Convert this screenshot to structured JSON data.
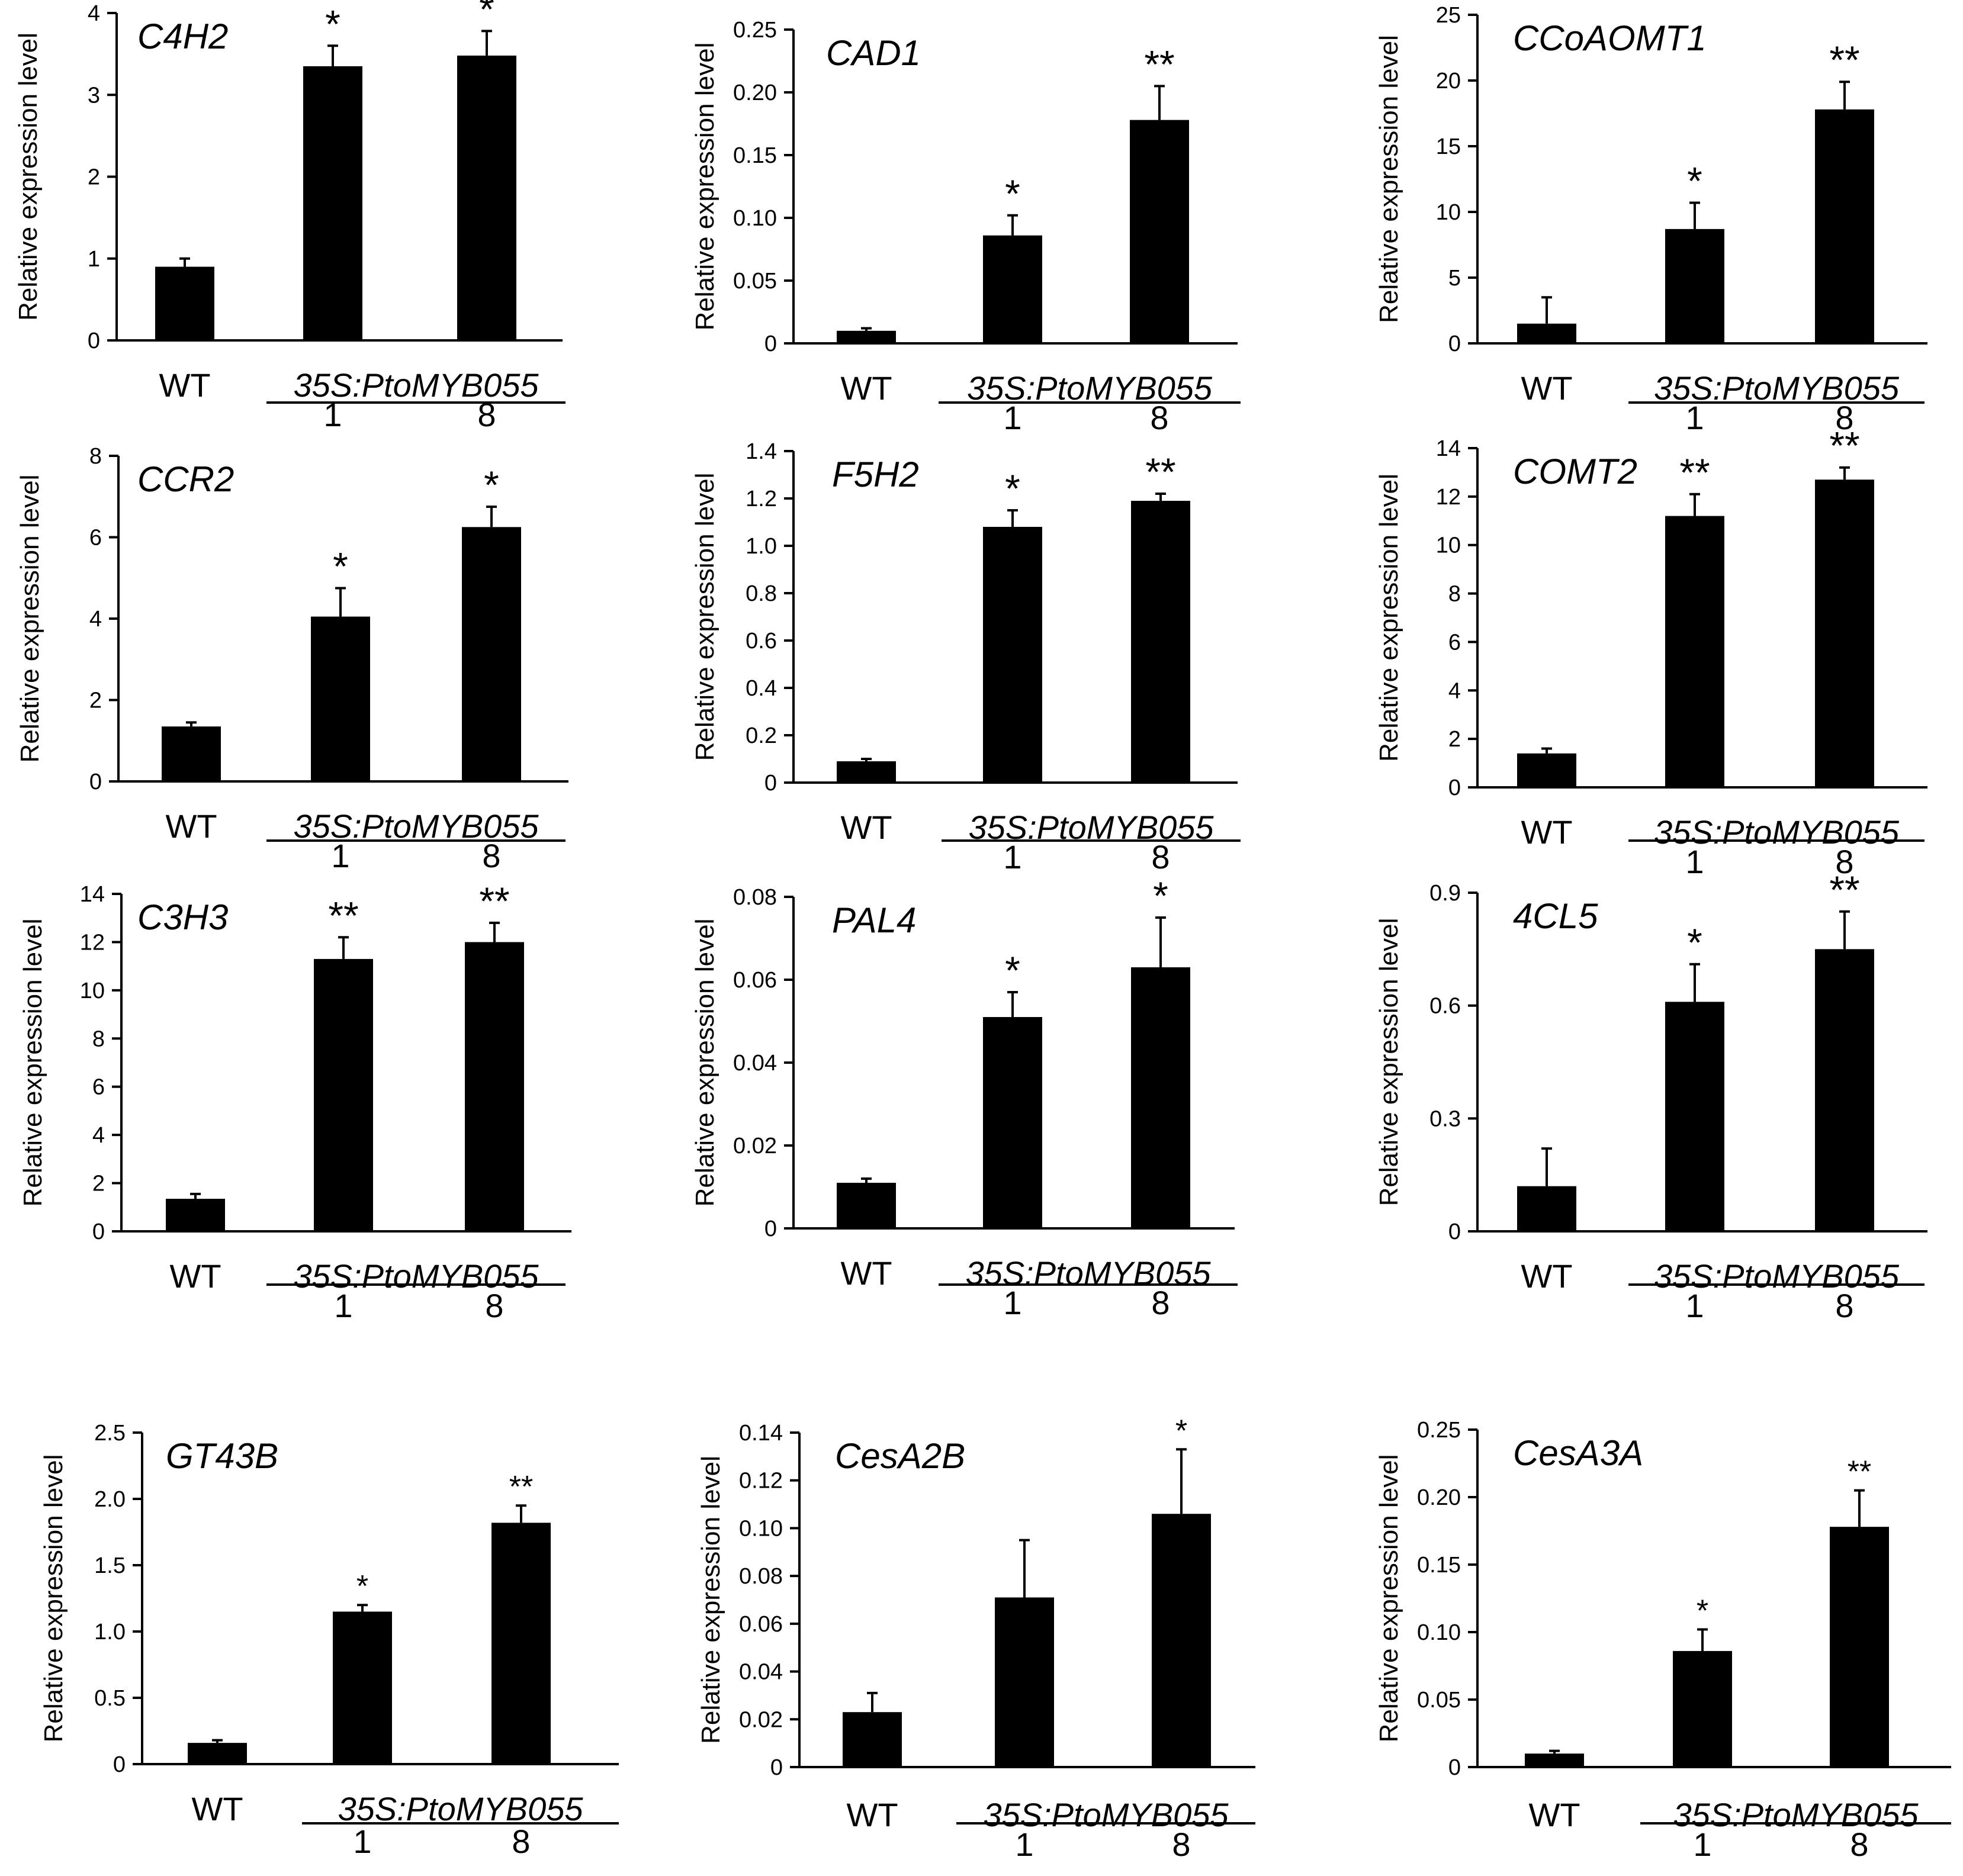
{
  "chart_data": [
    {
      "type": "bar",
      "title": "C4H2",
      "ylabel": "Relative expression level",
      "ylim": [
        0,
        4
      ],
      "yticks": [
        "0",
        "1",
        "2",
        "3",
        "4"
      ],
      "categories": [
        "WT",
        "1",
        "8"
      ],
      "group_label": "35S:PtoMYB055",
      "values": [
        0.9,
        3.35,
        3.48
      ],
      "errors": [
        0.1,
        0.25,
        0.3
      ],
      "significance": [
        "",
        "*",
        "*"
      ]
    },
    {
      "type": "bar",
      "title": "CAD1",
      "ylabel": "Relative expression level",
      "ylim": [
        0,
        0.25
      ],
      "yticks": [
        "0",
        "0.05",
        "0.10",
        "0.15",
        "0.20",
        "0.25"
      ],
      "categories": [
        "WT",
        "1",
        "8"
      ],
      "group_label": "35S:PtoMYB055",
      "values": [
        0.01,
        0.086,
        0.178
      ],
      "errors": [
        0.002,
        0.016,
        0.027
      ],
      "significance": [
        "",
        "*",
        "**"
      ]
    },
    {
      "type": "bar",
      "title": "CCoAOMT1",
      "ylabel": "Relative expression level",
      "ylim": [
        0,
        25
      ],
      "yticks": [
        "0",
        "5",
        "10",
        "15",
        "20",
        "25"
      ],
      "categories": [
        "WT",
        "1",
        "8"
      ],
      "group_label": "35S:PtoMYB055",
      "values": [
        1.5,
        8.7,
        17.8
      ],
      "errors": [
        2.0,
        2.0,
        2.1
      ],
      "significance": [
        "",
        "*",
        "**"
      ]
    },
    {
      "type": "bar",
      "title": "CCR2",
      "ylabel": "Relative expression level",
      "ylim": [
        0,
        8
      ],
      "yticks": [
        "0",
        "2",
        "4",
        "6",
        "8"
      ],
      "categories": [
        "WT",
        "1",
        "8"
      ],
      "group_label": "35S:PtoMYB055",
      "values": [
        1.35,
        4.05,
        6.25
      ],
      "errors": [
        0.1,
        0.7,
        0.5
      ],
      "significance": [
        "",
        "*",
        "*"
      ]
    },
    {
      "type": "bar",
      "title": "F5H2",
      "ylabel": "Relative expression level",
      "ylim": [
        0,
        1.4
      ],
      "yticks": [
        "0",
        "0.2",
        "0.4",
        "0.6",
        "0.8",
        "1.0",
        "1.2",
        "1.4"
      ],
      "categories": [
        "WT",
        "1",
        "8"
      ],
      "group_label": "35S:PtoMYB055",
      "values": [
        0.09,
        1.08,
        1.19
      ],
      "errors": [
        0.01,
        0.07,
        0.03
      ],
      "significance": [
        "",
        "*",
        "**"
      ]
    },
    {
      "type": "bar",
      "title": "COMT2",
      "ylabel": "Relative expression level",
      "ylim": [
        0,
        14
      ],
      "yticks": [
        "0",
        "2",
        "4",
        "6",
        "8",
        "10",
        "12",
        "14"
      ],
      "categories": [
        "WT",
        "1",
        "8"
      ],
      "group_label": "35S:PtoMYB055",
      "values": [
        1.4,
        11.2,
        12.7
      ],
      "errors": [
        0.2,
        0.9,
        0.5
      ],
      "significance": [
        "",
        "**",
        "**"
      ]
    },
    {
      "type": "bar",
      "title": "C3H3",
      "ylabel": "Relative expression level",
      "ylim": [
        0,
        14
      ],
      "yticks": [
        "0",
        "2",
        "4",
        "6",
        "8",
        "10",
        "12",
        "14"
      ],
      "categories": [
        "WT",
        "1",
        "8"
      ],
      "group_label": "35S:PtoMYB055",
      "values": [
        1.35,
        11.3,
        12.0
      ],
      "errors": [
        0.2,
        0.9,
        0.8
      ],
      "significance": [
        "",
        "**",
        "**"
      ]
    },
    {
      "type": "bar",
      "title": "PAL4",
      "ylabel": "Relative expression level",
      "ylim": [
        0,
        0.08
      ],
      "yticks": [
        "0",
        "0.02",
        "0.04",
        "0.06",
        "0.08"
      ],
      "categories": [
        "WT",
        "1",
        "8"
      ],
      "group_label": "35S:PtoMYB055",
      "values": [
        0.011,
        0.051,
        0.063
      ],
      "errors": [
        0.001,
        0.006,
        0.012
      ],
      "significance": [
        "",
        "*",
        "*"
      ]
    },
    {
      "type": "bar",
      "title": "4CL5",
      "ylabel": "Relative expression level",
      "ylim": [
        0,
        0.9
      ],
      "yticks": [
        "0",
        "0.3",
        "0.6",
        "0.9"
      ],
      "categories": [
        "WT",
        "1",
        "8"
      ],
      "group_label": "35S:PtoMYB055",
      "values": [
        0.12,
        0.61,
        0.75
      ],
      "errors": [
        0.1,
        0.1,
        0.1
      ],
      "significance": [
        "",
        "*",
        "**"
      ]
    },
    {
      "type": "bar",
      "title": "GT43B",
      "ylabel": "Relative expression level",
      "ylim": [
        0,
        2.5
      ],
      "yticks": [
        "0",
        "0.5",
        "1.0",
        "1.5",
        "2.0",
        "2.5"
      ],
      "categories": [
        "WT",
        "1",
        "8"
      ],
      "group_label": "35S:PtoMYB055",
      "values": [
        0.16,
        1.15,
        1.82
      ],
      "errors": [
        0.02,
        0.05,
        0.13
      ],
      "significance": [
        "",
        "*",
        "**"
      ]
    },
    {
      "type": "bar",
      "title": "CesA2B",
      "ylabel": "Relative expression level",
      "ylim": [
        0,
        0.14
      ],
      "yticks": [
        "0",
        "0.02",
        "0.04",
        "0.06",
        "0.08",
        "0.10",
        "0.12",
        "0.14"
      ],
      "categories": [
        "WT",
        "1",
        "8"
      ],
      "group_label": "35S:PtoMYB055",
      "values": [
        0.023,
        0.071,
        0.106
      ],
      "errors": [
        0.008,
        0.024,
        0.027
      ],
      "significance": [
        "",
        "",
        "*"
      ]
    },
    {
      "type": "bar",
      "title": "CesA3A",
      "ylabel": "Relative expression level",
      "ylim": [
        0,
        0.25
      ],
      "yticks": [
        "0",
        "0.05",
        "0.10",
        "0.15",
        "0.20",
        "0.25"
      ],
      "categories": [
        "WT",
        "1",
        "8"
      ],
      "group_label": "35S:PtoMYB055",
      "values": [
        0.01,
        0.086,
        0.178
      ],
      "errors": [
        0.002,
        0.016,
        0.027
      ],
      "significance": [
        "",
        "*",
        "**"
      ]
    }
  ],
  "colors": {
    "bar": "#000000",
    "axis": "#000000",
    "background": "#ffffff"
  }
}
